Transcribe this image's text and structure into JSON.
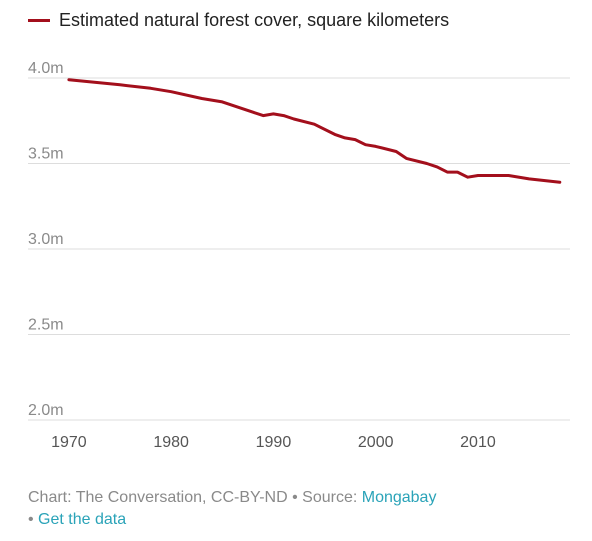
{
  "colors": {
    "series": "#a30f1c",
    "grid": "#dddddd",
    "link": "#2aa3b8"
  },
  "chart_data": {
    "type": "line",
    "legend": [
      "Estimated natural forest cover, square kilometers"
    ],
    "legend_position": "top-left",
    "grid": true,
    "ylim": [
      2000000,
      4000000
    ],
    "y_ticks": [
      {
        "value": 4000000,
        "label": "4.0m"
      },
      {
        "value": 3500000,
        "label": "3.5m"
      },
      {
        "value": 3000000,
        "label": "3.0m"
      },
      {
        "value": 2500000,
        "label": "2.5m"
      },
      {
        "value": 2000000,
        "label": "2.0m"
      }
    ],
    "xlim": [
      1966,
      2019
    ],
    "x_ticks": [
      {
        "value": 1970,
        "label": "1970"
      },
      {
        "value": 1980,
        "label": "1980"
      },
      {
        "value": 1990,
        "label": "1990"
      },
      {
        "value": 2000,
        "label": "2000"
      },
      {
        "value": 2010,
        "label": "2010"
      }
    ],
    "series": [
      {
        "name": "Estimated natural forest cover, square kilometers",
        "x": [
          1970,
          1975,
          1978,
          1980,
          1983,
          1985,
          1988,
          1989,
          1990,
          1991,
          1992,
          1994,
          1996,
          1997,
          1998,
          1999,
          2000,
          2002,
          2003,
          2005,
          2006,
          2007,
          2008,
          2009,
          2010,
          2013,
          2015,
          2018
        ],
        "y": [
          3990000,
          3960000,
          3940000,
          3920000,
          3880000,
          3860000,
          3800000,
          3780000,
          3790000,
          3780000,
          3760000,
          3730000,
          3670000,
          3650000,
          3640000,
          3610000,
          3600000,
          3570000,
          3530000,
          3500000,
          3480000,
          3450000,
          3450000,
          3420000,
          3430000,
          3430000,
          3410000,
          3390000
        ]
      }
    ]
  },
  "footer": {
    "credit": "Chart: The Conversation, CC-BY-ND • Source: ",
    "source_link": "Mongabay",
    "separator": "• ",
    "data_link": "Get the data"
  }
}
